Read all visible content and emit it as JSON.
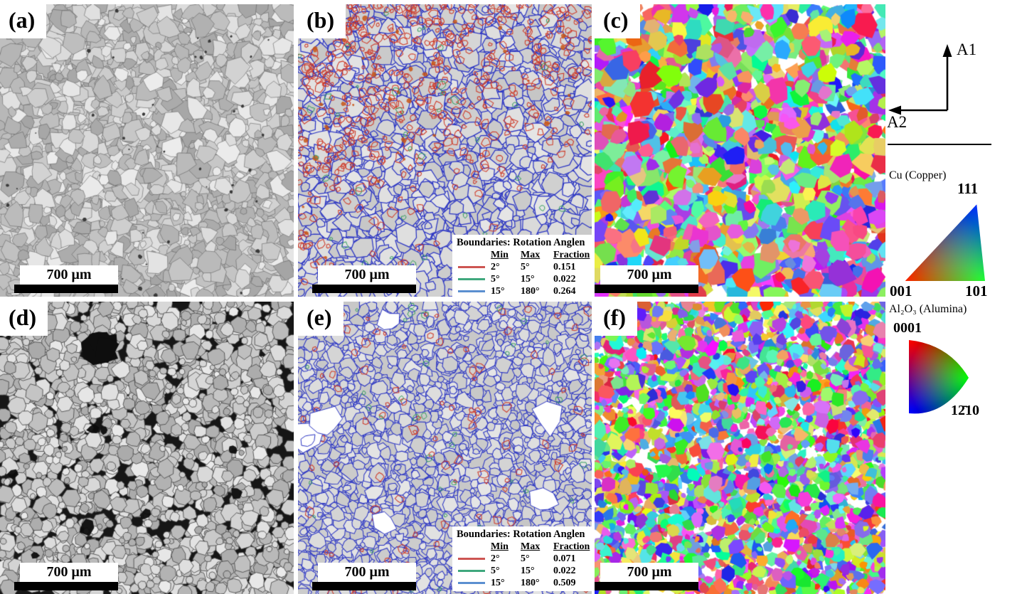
{
  "panels": {
    "a": {
      "label": "(a)",
      "scale_bar": "700 μm"
    },
    "b": {
      "label": "(b)",
      "scale_bar": "700 μm",
      "legend": {
        "title": "Boundaries: Rotation Anglen",
        "columns": [
          "Min",
          "Max",
          "Fraction"
        ],
        "rows": [
          {
            "color": "#cd5552",
            "min": "2°",
            "max": "5°",
            "fraction": "0.151"
          },
          {
            "color": "#3fa87d",
            "min": "5°",
            "max": "15°",
            "fraction": "0.022"
          },
          {
            "color": "#5b8fd0",
            "min": "15°",
            "max": "180°",
            "fraction": "0.264"
          }
        ]
      }
    },
    "c": {
      "label": "(c)",
      "scale_bar": "700 μm"
    },
    "d": {
      "label": "(d)",
      "scale_bar": "700 μm"
    },
    "e": {
      "label": "(e)",
      "scale_bar": "700 μm",
      "legend": {
        "title": "Boundaries: Rotation Anglen",
        "columns": [
          "Min",
          "Max",
          "Fraction"
        ],
        "rows": [
          {
            "color": "#cd5552",
            "min": "2°",
            "max": "5°",
            "fraction": "0.071"
          },
          {
            "color": "#3fa87d",
            "min": "5°",
            "max": "15°",
            "fraction": "0.022"
          },
          {
            "color": "#5b8fd0",
            "min": "15°",
            "max": "180°",
            "fraction": "0.509"
          }
        ]
      }
    },
    "f": {
      "label": "(f)",
      "scale_bar": "700 μm"
    }
  },
  "sidebar": {
    "axis1": "A1",
    "axis2": "A2",
    "cu_title": "Cu (Copper)",
    "cu_corner_111": "111",
    "cu_corner_001": "001",
    "cu_corner_101": "101",
    "al_title": "Al₂O₃ (Alumina)",
    "al_corner_0001": "0001",
    "al_corner_1210": "12̄10"
  },
  "palette": {
    "boundary_blue": "#2b35c4",
    "boundary_red": "#cf3a28",
    "boundary_green": "#2f9e5a",
    "ipf_red": "#ff0000",
    "ipf_green": "#00ff00",
    "ipf_blue": "#0000ff",
    "legend_red": "#cd5552",
    "legend_green": "#3fa87d",
    "legend_blue": "#5b8fd0"
  }
}
